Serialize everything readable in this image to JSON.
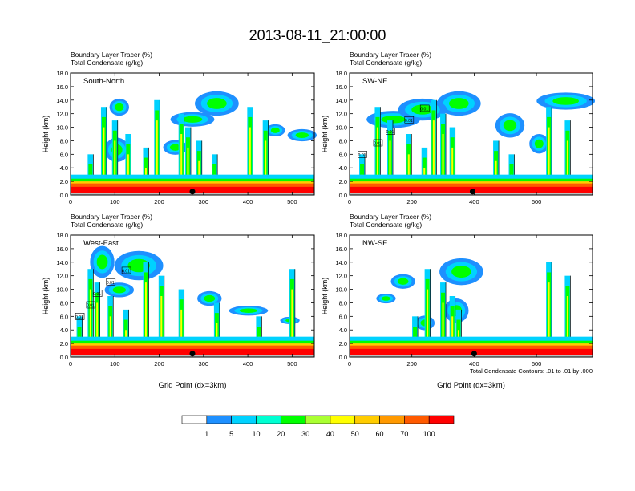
{
  "title": "2013-08-11_21:00:00",
  "field_label": "Boundary Layer Tracer",
  "field_units": "(%)",
  "contour_label": "Total Condensate",
  "contour_units": "(g/kg)",
  "contour_note": "Total Condensate Contours: .01 to .01 by .000",
  "contour_marker": "0.01",
  "colorbar": {
    "levels": [
      "1",
      "5",
      "10",
      "20",
      "30",
      "40",
      "50",
      "60",
      "70",
      "100"
    ],
    "colors": [
      "#ffffff",
      "#1e90ff",
      "#00d2ff",
      "#00ffd2",
      "#00ff00",
      "#aaff32",
      "#ffff00",
      "#ffcc00",
      "#ff9900",
      "#ff5a00",
      "#ff0000"
    ]
  },
  "chart_data": [
    {
      "type": "heatmap",
      "name": "South-North",
      "ylabel": "Height (km)",
      "xlabel": "",
      "xlim": [
        0,
        550
      ],
      "ylim": [
        0,
        18
      ],
      "xticks": [
        "0",
        "100",
        "200",
        "300",
        "400",
        "500"
      ],
      "yticks": [
        "0.0",
        "2.0",
        "4.0",
        "6.0",
        "8.0",
        "10.0",
        "12.0",
        "14.0",
        "16.0",
        "18.0"
      ],
      "marker_x": 275,
      "deep_convection_x": [
        45,
        75,
        100,
        130,
        170,
        195,
        250,
        265,
        290,
        325,
        405,
        440
      ]
    },
    {
      "type": "heatmap",
      "name": "SW-NE",
      "ylabel": "Height (km)",
      "xlabel": "",
      "xlim": [
        0,
        780
      ],
      "ylim": [
        0,
        18
      ],
      "xticks": [
        "0",
        "200",
        "400",
        "600"
      ],
      "yticks": [
        "0.0",
        "2.0",
        "4.0",
        "6.0",
        "8.0",
        "10.0",
        "12.0",
        "14.0",
        "16.0",
        "18.0"
      ],
      "marker_x": 395,
      "deep_convection_x": [
        40,
        90,
        130,
        190,
        240,
        270,
        300,
        330,
        470,
        520,
        640,
        700
      ]
    },
    {
      "type": "heatmap",
      "name": "West-East",
      "ylabel": "Height (km)",
      "xlabel": "Grid Point (dx=3km)",
      "xlim": [
        0,
        550
      ],
      "ylim": [
        0,
        18
      ],
      "xticks": [
        "0",
        "100",
        "200",
        "300",
        "400",
        "500"
      ],
      "yticks": [
        "0.0",
        "2.0",
        "4.0",
        "6.0",
        "8.0",
        "10.0",
        "12.0",
        "14.0",
        "16.0",
        "18.0"
      ],
      "marker_x": 275,
      "deep_convection_x": [
        20,
        45,
        60,
        90,
        125,
        170,
        205,
        250,
        330,
        425,
        500
      ]
    },
    {
      "type": "heatmap",
      "name": "NW-SE",
      "ylabel": "Height (km)",
      "xlabel": "Grid Point (dx=3km)",
      "xlim": [
        0,
        780
      ],
      "ylim": [
        0,
        18
      ],
      "xticks": [
        "0",
        "200",
        "400",
        "600"
      ],
      "yticks": [
        "0.0",
        "2.0",
        "4.0",
        "6.0",
        "8.0",
        "10.0",
        "12.0",
        "14.0",
        "16.0",
        "18.0"
      ],
      "marker_x": 400,
      "deep_convection_x": [
        210,
        250,
        300,
        330,
        350,
        640,
        700
      ]
    }
  ]
}
